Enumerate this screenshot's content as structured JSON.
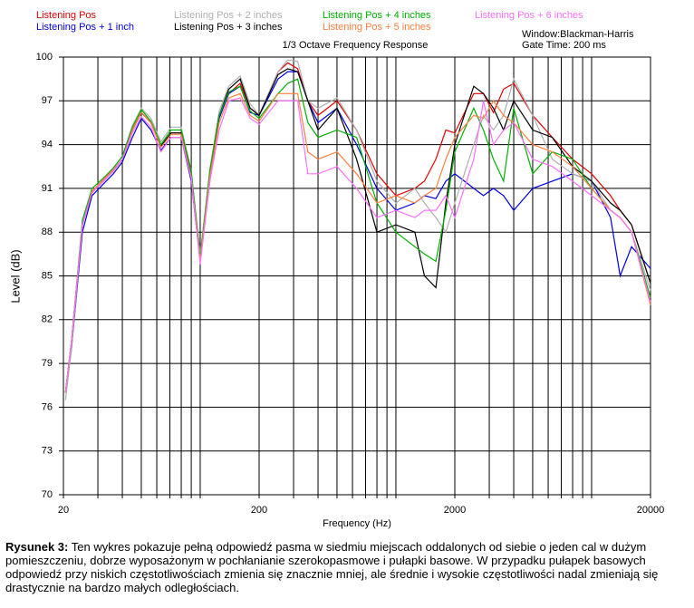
{
  "chart_data": {
    "type": "line",
    "title": "1/3 Octave Frequency Response",
    "annotations": [
      "Window:Blackman-Harris",
      "Gate Time: 200 ms"
    ],
    "x_label": "Frequency (Hz)",
    "y_label": "Level (dB)",
    "log_x": true,
    "grid": true,
    "xlim": [
      20,
      20000
    ],
    "ylim": [
      70,
      100
    ],
    "xticks": [
      20,
      200,
      2000,
      20000
    ],
    "xgrid": [
      20,
      30,
      40,
      50,
      60,
      70,
      80,
      90,
      100,
      200,
      300,
      400,
      500,
      600,
      700,
      800,
      900,
      1000,
      2000,
      3000,
      4000,
      5000,
      6000,
      7000,
      8000,
      9000,
      10000,
      20000
    ],
    "yticks": [
      70,
      73,
      76,
      79,
      82,
      85,
      88,
      91,
      94,
      97,
      100
    ],
    "x": [
      20.5,
      22,
      25,
      28,
      32,
      36,
      40,
      45,
      50,
      56,
      63,
      71,
      80,
      90,
      100,
      112,
      125,
      140,
      160,
      180,
      200,
      250,
      280,
      315,
      355,
      400,
      500,
      630,
      800,
      1000,
      1250,
      1400,
      1600,
      1800,
      2000,
      2500,
      2800,
      3150,
      3550,
      4000,
      5000,
      6300,
      8000,
      10000,
      12500,
      14000,
      16000,
      20000
    ],
    "series": [
      {
        "name": "Listening Pos",
        "color": "#e00000",
        "values": [
          77,
          80.5,
          88.5,
          90.8,
          91.5,
          92.2,
          93,
          95,
          96.2,
          95.5,
          93.9,
          94.8,
          94.8,
          92,
          86.5,
          92,
          96,
          97.5,
          98.2,
          96.5,
          96,
          99,
          99.6,
          99.2,
          97,
          96,
          97,
          95,
          92,
          90.5,
          91,
          91.5,
          93,
          95,
          94.8,
          97.5,
          97.5,
          96.2,
          97.8,
          98.2,
          96,
          94.5,
          93,
          92,
          90.5,
          89.5,
          88.5,
          84.5
        ]
      },
      {
        "name": "Listening Pos + 1 inch",
        "color": "#0000e0",
        "values": [
          77,
          80,
          88,
          90.5,
          91.3,
          92,
          92.8,
          94.5,
          95.8,
          95,
          93.6,
          94.5,
          94.5,
          91.5,
          86,
          91.5,
          95.8,
          97.5,
          98,
          96.2,
          96,
          98.5,
          99,
          99,
          97,
          95.5,
          96.5,
          94,
          91,
          89.5,
          90,
          90.5,
          90.3,
          91.5,
          92,
          91,
          90.5,
          91,
          90.5,
          89.5,
          91,
          91.5,
          92,
          91.5,
          89,
          85,
          87,
          85.5
        ]
      },
      {
        "name": "Listening Pos + 2 inches",
        "color": "#b0b0b0",
        "values": [
          76.5,
          80,
          88.5,
          90.8,
          91.6,
          92.4,
          93.2,
          95.3,
          96.5,
          95.8,
          94.2,
          95.2,
          95.2,
          92.2,
          86.5,
          92.3,
          96.3,
          98,
          98.7,
          96.8,
          96,
          99,
          99.8,
          99.7,
          97,
          96.5,
          97.2,
          95,
          91.5,
          90,
          91,
          90,
          89,
          88,
          90,
          94,
          96,
          95,
          96,
          98.5,
          96,
          93,
          92,
          91.5,
          89.5,
          89,
          88,
          84
        ]
      },
      {
        "name": "Listening Pos + 3 inches",
        "color": "#000000",
        "values": [
          77,
          80.5,
          88.5,
          90.7,
          91.5,
          92.2,
          93,
          95,
          96.2,
          95.5,
          93.9,
          94.8,
          94.8,
          92,
          86,
          92,
          96,
          97.8,
          98.5,
          96.5,
          96,
          98.8,
          99.2,
          99,
          97,
          95,
          96.5,
          93,
          88,
          88.5,
          88,
          85,
          84.2,
          90,
          94,
          98,
          97.5,
          96.5,
          95,
          97,
          95,
          94.5,
          92.5,
          91.5,
          90,
          89.5,
          88.5,
          84.5
        ]
      },
      {
        "name": "Listening Pos + 4 inches",
        "color": "#00b000",
        "values": [
          77,
          80.5,
          88.8,
          91,
          91.7,
          92.4,
          93.2,
          95.2,
          96.4,
          95.6,
          94,
          95,
          95,
          92.2,
          86.2,
          92.2,
          96,
          97.6,
          98,
          96.3,
          95.8,
          97.5,
          98.2,
          98.5,
          95.5,
          94.5,
          95,
          94.5,
          90,
          88,
          87,
          86.5,
          86,
          89.5,
          93.5,
          96.5,
          95,
          93,
          91.5,
          96.5,
          92,
          93.5,
          93,
          91,
          89.5,
          89,
          88,
          83.5
        ]
      },
      {
        "name": "Listening Pos + 5 inches",
        "color": "#ff8040",
        "values": [
          77,
          80.5,
          88.5,
          90.8,
          91.6,
          92.3,
          93,
          95,
          96.2,
          95.5,
          93.8,
          94.7,
          94.7,
          91.8,
          86,
          91.8,
          95.5,
          97.2,
          97.5,
          96,
          95.6,
          97.5,
          97.5,
          97.5,
          93.5,
          93,
          93.5,
          92,
          90,
          90.5,
          90,
          90.5,
          91,
          93,
          94.5,
          96,
          95.8,
          97,
          96,
          95.5,
          94,
          93.5,
          92.5,
          91,
          89.5,
          89,
          88,
          83
        ]
      },
      {
        "name": "Listening Pos + 6 inches",
        "color": "#ff70ff",
        "values": [
          77,
          80.5,
          88.5,
          90.7,
          91.5,
          92.2,
          93,
          94.8,
          95.9,
          95.2,
          93.5,
          94.5,
          94.5,
          91.7,
          85.8,
          91.5,
          95,
          97,
          97.2,
          95.8,
          95.4,
          97,
          97,
          97,
          92,
          92,
          92.5,
          91,
          89,
          89.5,
          89,
          89.5,
          89.5,
          90.5,
          89,
          93,
          97,
          94,
          95,
          95.5,
          93,
          92.5,
          91.5,
          90.5,
          89.5,
          89,
          88,
          83.2
        ]
      }
    ]
  },
  "caption": {
    "label": "Rysunek 3:",
    "text": "Ten wykres pokazuje pełną odpowiedź pasma w siedmiu miejscach oddalonych od siebie o jeden cal w dużym pomieszczeniu, dobrze wyposażonym w pochłanianie szerokopasmowe i pułapki basowe. W przypadku pułapek basowych odpowiedź przy niskich częstotliwościach zmienia się znacznie mniej, ale średnie i wysokie częstotliwości nadal zmieniają się drastycznie na bardzo małych odległościach."
  }
}
